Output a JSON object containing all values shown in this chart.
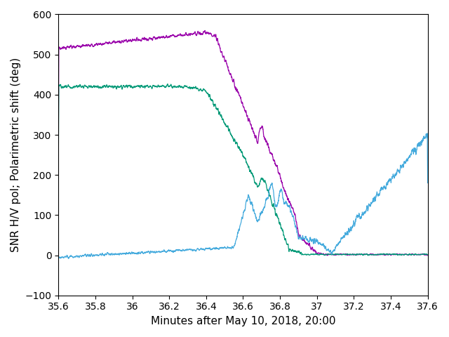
{
  "xlabel": "Minutes after May 10, 2018, 20:00",
  "ylabel": "SNR H/V pol; Polarimetric shift (deg)",
  "xlim": [
    35.6,
    37.6
  ],
  "ylim": [
    -100,
    600
  ],
  "xticks": [
    35.6,
    35.8,
    36.0,
    36.2,
    36.4,
    36.6,
    36.8,
    37.0,
    37.2,
    37.4,
    37.6
  ],
  "yticks": [
    -100,
    0,
    100,
    200,
    300,
    400,
    500,
    600
  ],
  "color_magenta": "#9900aa",
  "color_green": "#009977",
  "color_cyan": "#44aadd",
  "linewidth": 0.9,
  "background_color": "#ffffff"
}
